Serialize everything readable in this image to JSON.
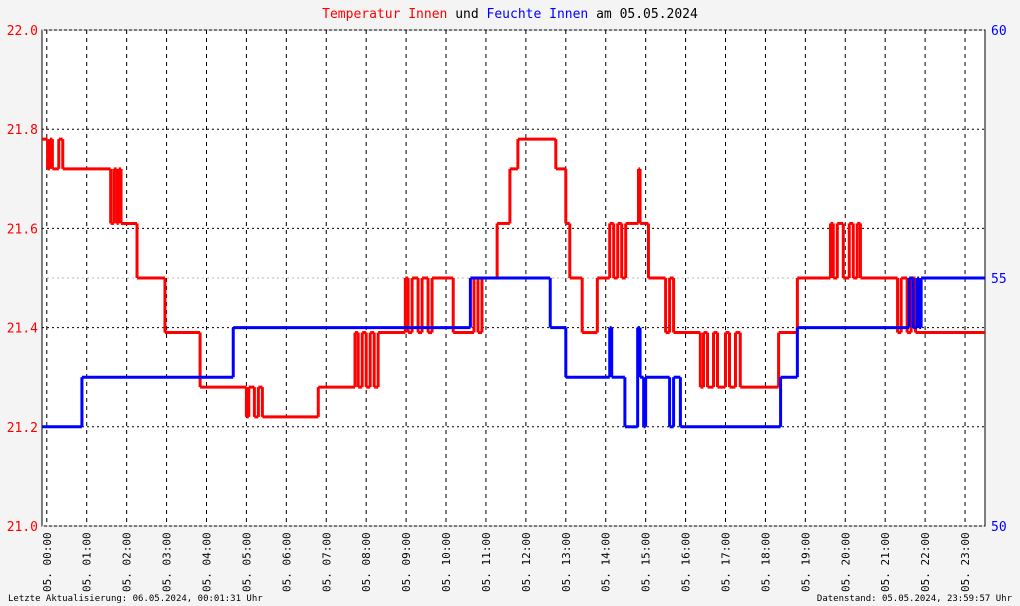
{
  "chart_data": {
    "type": "step",
    "title_connector": "und",
    "title_suffix": "am 05.05.2024",
    "footer_left": "Letzte Aktualisierung: 06.05.2024, 00:01:31 Uhr",
    "footer_right": "Datenstand: 05.05.2024, 23:59:57 Uhr",
    "xlim": [
      -0.12,
      23.5
    ],
    "xticks": [
      {
        "value": 0,
        "label": "05. 00:00"
      },
      {
        "value": 1,
        "label": "05. 01:00"
      },
      {
        "value": 2,
        "label": "05. 02:00"
      },
      {
        "value": 3,
        "label": "05. 03:00"
      },
      {
        "value": 4,
        "label": "05. 04:00"
      },
      {
        "value": 5,
        "label": "05. 05:00"
      },
      {
        "value": 6,
        "label": "05. 06:00"
      },
      {
        "value": 7,
        "label": "05. 07:00"
      },
      {
        "value": 8,
        "label": "05. 08:00"
      },
      {
        "value": 9,
        "label": "05. 09:00"
      },
      {
        "value": 10,
        "label": "05. 10:00"
      },
      {
        "value": 11,
        "label": "05. 11:00"
      },
      {
        "value": 12,
        "label": "05. 12:00"
      },
      {
        "value": 13,
        "label": "05. 13:00"
      },
      {
        "value": 14,
        "label": "05. 14:00"
      },
      {
        "value": 15,
        "label": "05. 15:00"
      },
      {
        "value": 16,
        "label": "05. 16:00"
      },
      {
        "value": 17,
        "label": "05. 17:00"
      },
      {
        "value": 18,
        "label": "05. 18:00"
      },
      {
        "value": 19,
        "label": "05. 19:00"
      },
      {
        "value": 20,
        "label": "05. 20:00"
      },
      {
        "value": 21,
        "label": "05. 21:00"
      },
      {
        "value": 22,
        "label": "05. 22:00"
      },
      {
        "value": 23,
        "label": "05. 23:00"
      }
    ],
    "ylim": [
      21.0,
      22.0
    ],
    "yticks": [
      {
        "value": 21.0,
        "label": "21.0"
      },
      21.2,
      21.4,
      21.6,
      21.8,
      {
        "value": 22.0,
        "label": "22.0"
      }
    ],
    "y2lim": [
      50,
      60
    ],
    "y2ticks": [
      50,
      55,
      60
    ],
    "grid": true,
    "series": [
      {
        "name": "Temperatur Innen",
        "color": "#ff0000",
        "x": [
          -0.12,
          0.02,
          0.08,
          0.14,
          0.3,
          0.4,
          1.6,
          1.68,
          1.75,
          1.8,
          1.86,
          2.26,
          2.96,
          3.84,
          5.0,
          5.06,
          5.2,
          5.3,
          5.4,
          6.8,
          7.72,
          7.8,
          7.9,
          8.0,
          8.1,
          8.2,
          8.3,
          8.98,
          9.05,
          9.15,
          9.3,
          9.4,
          9.55,
          9.65,
          10.18,
          10.7,
          10.8,
          10.9,
          11.28,
          11.6,
          11.8,
          12.75,
          13.0,
          13.1,
          13.41,
          13.79,
          14.1,
          14.2,
          14.3,
          14.4,
          14.5,
          14.82,
          14.86,
          15.07,
          15.5,
          15.6,
          15.7,
          16.37,
          16.45,
          16.55,
          16.7,
          16.8,
          17.0,
          17.1,
          17.25,
          17.37,
          18.33,
          18.8,
          19.63,
          19.7,
          19.8,
          19.95,
          20.1,
          20.2,
          20.3,
          20.38,
          21.31,
          21.4,
          21.55,
          21.65,
          21.76
        ],
        "values": [
          21.78,
          21.72,
          21.78,
          21.72,
          21.78,
          21.72,
          21.61,
          21.72,
          21.61,
          21.72,
          21.61,
          21.5,
          21.39,
          21.28,
          21.22,
          21.28,
          21.22,
          21.28,
          21.22,
          21.28,
          21.39,
          21.28,
          21.39,
          21.28,
          21.39,
          21.28,
          21.39,
          21.5,
          21.39,
          21.5,
          21.39,
          21.5,
          21.39,
          21.5,
          21.39,
          21.5,
          21.39,
          21.5,
          21.61,
          21.72,
          21.78,
          21.72,
          21.61,
          21.5,
          21.39,
          21.5,
          21.61,
          21.5,
          21.61,
          21.5,
          21.61,
          21.72,
          21.61,
          21.5,
          21.39,
          21.5,
          21.39,
          21.28,
          21.39,
          21.28,
          21.39,
          21.28,
          21.39,
          21.28,
          21.39,
          21.28,
          21.39,
          21.5,
          21.61,
          21.5,
          21.61,
          21.5,
          21.61,
          21.5,
          21.61,
          21.5,
          21.39,
          21.5,
          21.39,
          21.5,
          21.39
        ]
      },
      {
        "name": "Feuchte Innen",
        "color": "#0000ff",
        "axis": "y2",
        "x": [
          -0.12,
          0.88,
          4.67,
          10.61,
          12.61,
          13.0,
          14.1,
          14.15,
          14.48,
          14.8,
          14.86,
          14.95,
          15.0,
          15.6,
          15.7,
          15.87,
          18.38,
          18.8,
          21.6,
          21.7,
          21.8,
          21.85,
          21.9
        ],
        "values": [
          52,
          53,
          54,
          55,
          54,
          53,
          54,
          53,
          52,
          54,
          53,
          52,
          53,
          52,
          53,
          52,
          53,
          54,
          55,
          54,
          55,
          54,
          55
        ]
      }
    ]
  }
}
